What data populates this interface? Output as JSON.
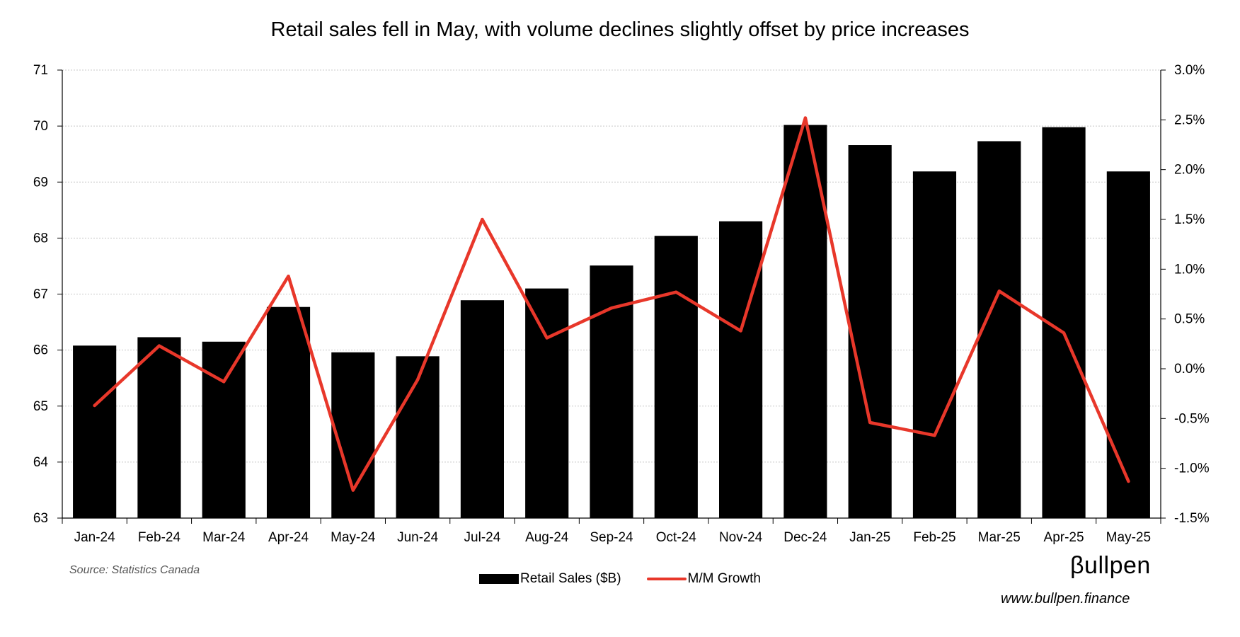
{
  "chart_data": {
    "type": "bar+line",
    "title": "Retail sales fell in May, with volume declines slightly offset by price increases",
    "categories": [
      "Jan-24",
      "Feb-24",
      "Mar-24",
      "Apr-24",
      "May-24",
      "Jun-24",
      "Jul-24",
      "Aug-24",
      "Sep-24",
      "Oct-24",
      "Nov-24",
      "Dec-24",
      "Jan-25",
      "Feb-25",
      "Mar-25",
      "Apr-25",
      "May-25"
    ],
    "series": [
      {
        "name": "Retail Sales ($B)",
        "type": "bar",
        "axis": "left",
        "color": "#000000",
        "values": [
          66.08,
          66.23,
          66.15,
          66.77,
          65.96,
          65.89,
          66.89,
          67.1,
          67.51,
          68.04,
          68.3,
          70.02,
          69.66,
          69.19,
          69.73,
          69.98,
          69.19
        ]
      },
      {
        "name": "M/M Growth",
        "type": "line",
        "axis": "right",
        "color": "#e8372a",
        "values": [
          -0.37,
          0.23,
          -0.13,
          0.93,
          -1.22,
          -0.11,
          1.5,
          0.31,
          0.61,
          0.77,
          0.38,
          2.52,
          -0.54,
          -0.67,
          0.78,
          0.36,
          -1.13
        ]
      }
    ],
    "left_axis": {
      "ylim": [
        63,
        71
      ],
      "ticks": [
        "63",
        "64",
        "65",
        "66",
        "67",
        "68",
        "69",
        "70",
        "71"
      ]
    },
    "right_axis": {
      "ylim": [
        -1.5,
        3.0
      ],
      "ticks": [
        "-1.5%",
        "-1.0%",
        "-0.5%",
        "0.0%",
        "0.5%",
        "1.0%",
        "1.5%",
        "2.0%",
        "2.5%",
        "3.0%"
      ]
    },
    "grid": true,
    "legend": "bottom-center"
  },
  "source": "Source: Statistics Canada",
  "brand": "βullpen",
  "website": "www.bullpen.finance"
}
